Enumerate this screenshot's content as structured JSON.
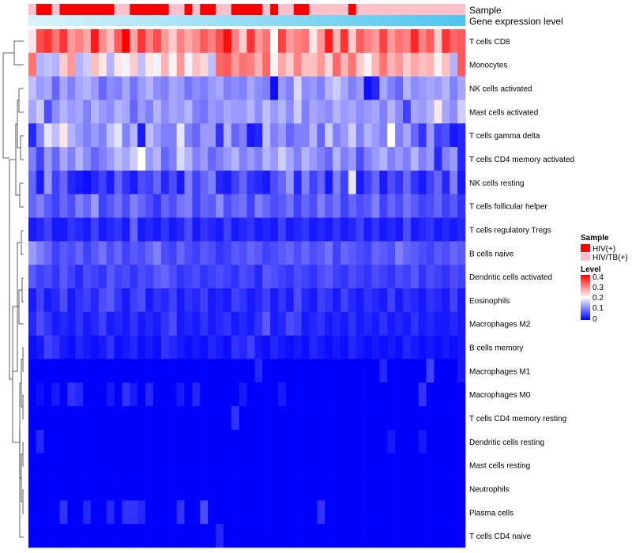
{
  "chart_data": {
    "type": "heatmap",
    "annotation_labels": {
      "sample": "Sample",
      "gene": "Gene expression level"
    },
    "legend": {
      "sample_title": "Sample",
      "sample_items": [
        {
          "label": "HIV(+)",
          "color": "#ff0000"
        },
        {
          "label": "HIV/TB(+)",
          "color": "#ffc0cb"
        }
      ],
      "level_title": "Level",
      "level_ticks": [
        "0.4",
        "0.3",
        "0.2",
        "0.1",
        "0"
      ],
      "position": "right"
    },
    "color_scale": {
      "min": 0,
      "max": 0.4,
      "low": "#0000ff",
      "mid": "#ffffff",
      "high": "#ff0000"
    },
    "gene_gradient": {
      "from": "#d9f2fb",
      "to": "#4fc6ee"
    },
    "sample_groups": [
      1,
      0,
      0,
      1,
      0,
      0,
      0,
      0,
      0,
      0,
      0,
      1,
      1,
      0,
      0,
      0,
      0,
      0,
      1,
      1,
      0,
      1,
      0,
      0,
      1,
      1,
      0,
      0,
      0,
      0,
      1,
      0,
      1,
      1,
      0,
      0,
      1,
      1,
      1,
      1,
      1,
      0,
      1,
      1,
      1,
      1,
      1,
      1,
      1,
      1,
      1,
      1,
      1,
      1,
      1,
      1
    ],
    "rows": [
      "T cells CD8",
      "Monocytes",
      "NK cells activated",
      "Mast cells activated",
      "T cells gamma delta",
      "T cells CD4 memory activated",
      "NK cells resting",
      "T cells follicular helper",
      "T cells regulatory  Tregs",
      "B cells naive",
      "Dendritic cells activated",
      "Eosinophils",
      "Macrophages M2",
      "B cells memory",
      "Macrophages M1",
      "Macrophages M0",
      "T cells CD4 memory resting",
      "Dendritic cells resting",
      "Mast cells resting",
      "Neutrophils",
      "Plasma cells",
      "T cells CD4 naive"
    ],
    "values": [
      [
        0.22,
        0.34,
        0.36,
        0.31,
        0.36,
        0.28,
        0.3,
        0.27,
        0.38,
        0.29,
        0.25,
        0.33,
        0.4,
        0.27,
        0.36,
        0.3,
        0.34,
        0.28,
        0.24,
        0.3,
        0.27,
        0.29,
        0.33,
        0.3,
        0.34,
        0.39,
        0.3,
        0.24,
        0.36,
        0.28,
        0.31,
        0.2,
        0.35,
        0.28,
        0.3,
        0.31,
        0.22,
        0.28,
        0.38,
        0.26,
        0.36,
        0.24,
        0.33,
        0.3,
        0.28,
        0.35,
        0.28,
        0.31,
        0.3,
        0.37,
        0.3,
        0.33,
        0.24,
        0.36,
        0.32,
        0.33
      ],
      [
        0.31,
        0.14,
        0.15,
        0.14,
        0.24,
        0.28,
        0.14,
        0.16,
        0.25,
        0.22,
        0.14,
        0.22,
        0.19,
        0.24,
        0.15,
        0.22,
        0.19,
        0.26,
        0.21,
        0.28,
        0.19,
        0.25,
        0.23,
        0.15,
        0.32,
        0.33,
        0.28,
        0.31,
        0.3,
        0.26,
        0.32,
        0.21,
        0.27,
        0.24,
        0.3,
        0.25,
        0.25,
        0.28,
        0.23,
        0.32,
        0.26,
        0.31,
        0.24,
        0.21,
        0.26,
        0.31,
        0.26,
        0.28,
        0.24,
        0.27,
        0.25,
        0.26,
        0.21,
        0.25,
        0.14,
        0.33
      ],
      [
        0.15,
        0.12,
        0.13,
        0.08,
        0.13,
        0.1,
        0.13,
        0.14,
        0.12,
        0.08,
        0.11,
        0.1,
        0.13,
        0.09,
        0.12,
        0.14,
        0.11,
        0.1,
        0.13,
        0.12,
        0.09,
        0.11,
        0.1,
        0.12,
        0.13,
        0.1,
        0.11,
        0.1,
        0.13,
        0.11,
        0.1,
        0.01,
        0.12,
        0.1,
        0.17,
        0.11,
        0.12,
        0.1,
        0.14,
        0.16,
        0.13,
        0.1,
        0.12,
        0.01,
        0.03,
        0.13,
        0.1,
        0.08,
        0.14,
        0.11,
        0.12,
        0.13,
        0.12,
        0.14,
        0.1,
        0.13
      ],
      [
        0.13,
        0.16,
        0.06,
        0.11,
        0.14,
        0.12,
        0.13,
        0.1,
        0.14,
        0.12,
        0.11,
        0.14,
        0.13,
        0.08,
        0.12,
        0.1,
        0.14,
        0.11,
        0.13,
        0.12,
        0.14,
        0.1,
        0.09,
        0.12,
        0.11,
        0.13,
        0.12,
        0.12,
        0.14,
        0.11,
        0.15,
        0.12,
        0.14,
        0.11,
        0.16,
        0.1,
        0.13,
        0.12,
        0.11,
        0.14,
        0.12,
        0.13,
        0.11,
        0.12,
        0.13,
        0.1,
        0.14,
        0.11,
        0.05,
        0.13,
        0.12,
        0.14,
        0.22,
        0.13,
        0.11,
        0.16
      ],
      [
        0.03,
        0.1,
        0.18,
        0.15,
        0.22,
        0.14,
        0.12,
        0.1,
        0.12,
        0.1,
        0.15,
        0.18,
        0.1,
        0.14,
        0.02,
        0.15,
        0.12,
        0.1,
        0.1,
        0.18,
        0.1,
        0.08,
        0.12,
        0.12,
        0.04,
        0.14,
        0.08,
        0.1,
        0.02,
        0.03,
        0.15,
        0.1,
        0.12,
        0.08,
        0.1,
        0.1,
        0.14,
        0.08,
        0.16,
        0.1,
        0.12,
        0.16,
        0.1,
        0.14,
        0.12,
        0.1,
        0.2,
        0.1,
        0.13,
        0.08,
        0.04,
        0.12,
        0.05,
        0.06,
        0.02,
        0.03
      ],
      [
        0.1,
        0.05,
        0.12,
        0.08,
        0.13,
        0.1,
        0.14,
        0.11,
        0.08,
        0.1,
        0.12,
        0.15,
        0.13,
        0.16,
        0.2,
        0.12,
        0.14,
        0.08,
        0.1,
        0.17,
        0.14,
        0.1,
        0.12,
        0.08,
        0.1,
        0.12,
        0.14,
        0.1,
        0.12,
        0.1,
        0.14,
        0.12,
        0.16,
        0.13,
        0.1,
        0.14,
        0.12,
        0.1,
        0.08,
        0.14,
        0.1,
        0.12,
        0.06,
        0.1,
        0.12,
        0.14,
        0.1,
        0.12,
        0.1,
        0.14,
        0.1,
        0.12,
        0.03,
        0.1,
        0.12,
        0.03
      ],
      [
        0.08,
        0.02,
        0.12,
        0.05,
        0.08,
        0.03,
        0.02,
        0.01,
        0.03,
        0.05,
        0.02,
        0.08,
        0.04,
        0.02,
        0.06,
        0.05,
        0.08,
        0.03,
        0.06,
        0.02,
        0.1,
        0.05,
        0.08,
        0.1,
        0.03,
        0.02,
        0.05,
        0.08,
        0.04,
        0.03,
        0.02,
        0.06,
        0.08,
        0.12,
        0.03,
        0.1,
        0.05,
        0.08,
        0.02,
        0.1,
        0.05,
        0.18,
        0.02,
        0.05,
        0.08,
        0.02,
        0.06,
        0.04,
        0.08,
        0.04,
        0.02,
        0.05,
        0.08,
        0.03,
        0.1,
        0.02
      ],
      [
        0.08,
        0.1,
        0.07,
        0.05,
        0.08,
        0.06,
        0.1,
        0.08,
        0.12,
        0.05,
        0.07,
        0.09,
        0.06,
        0.1,
        0.08,
        0.06,
        0.04,
        0.08,
        0.06,
        0.09,
        0.1,
        0.05,
        0.08,
        0.07,
        0.11,
        0.06,
        0.08,
        0.09,
        0.05,
        0.1,
        0.08,
        0.06,
        0.07,
        0.09,
        0.05,
        0.08,
        0.06,
        0.1,
        0.07,
        0.09,
        0.05,
        0.08,
        0.06,
        0.07,
        0.1,
        0.05,
        0.08,
        0.06,
        0.09,
        0.07,
        0.05,
        0.06,
        0.08,
        0.05,
        0.07,
        0.04
      ],
      [
        0.02,
        0.03,
        0.05,
        0.02,
        0.02,
        0.04,
        0.03,
        0.02,
        0.05,
        0.02,
        0.03,
        0.04,
        0.02,
        0.08,
        0.02,
        0.03,
        0.02,
        0.04,
        0.02,
        0.03,
        0.06,
        0.02,
        0.04,
        0.03,
        0.02,
        0.05,
        0.02,
        0.03,
        0.04,
        0.02,
        0.03,
        0.02,
        0.05,
        0.02,
        0.03,
        0.04,
        0.02,
        0.03,
        0.02,
        0.04,
        0.02,
        0.03,
        0.05,
        0.02,
        0.04,
        0.02,
        0.03,
        0.02,
        0.06,
        0.02,
        0.03,
        0.04,
        0.02,
        0.03,
        0.02,
        0.03
      ],
      [
        0.12,
        0.1,
        0.08,
        0.05,
        0.07,
        0.06,
        0.08,
        0.05,
        0.07,
        0.09,
        0.06,
        0.08,
        0.05,
        0.07,
        0.06,
        0.08,
        0.1,
        0.06,
        0.05,
        0.08,
        0.06,
        0.05,
        0.07,
        0.06,
        0.04,
        0.05,
        0.07,
        0.06,
        0.08,
        0.07,
        0.05,
        0.06,
        0.07,
        0.08,
        0.06,
        0.08,
        0.06,
        0.07,
        0.09,
        0.05,
        0.08,
        0.07,
        0.06,
        0.05,
        0.08,
        0.07,
        0.06,
        0.1,
        0.08,
        0.07,
        0.06,
        0.05,
        0.07,
        0.06,
        0.08,
        0.07
      ],
      [
        0.07,
        0.05,
        0.06,
        0.04,
        0.07,
        0.05,
        0.03,
        0.06,
        0.05,
        0.04,
        0.07,
        0.05,
        0.06,
        0.04,
        0.06,
        0.05,
        0.07,
        0.08,
        0.06,
        0.04,
        0.05,
        0.06,
        0.04,
        0.05,
        0.06,
        0.05,
        0.04,
        0.06,
        0.05,
        0.03,
        0.07,
        0.06,
        0.05,
        0.04,
        0.06,
        0.05,
        0.04,
        0.06,
        0.07,
        0.05,
        0.04,
        0.06,
        0.05,
        0.04,
        0.06,
        0.05,
        0.04,
        0.06,
        0.05,
        0.07,
        0.04,
        0.06,
        0.05,
        0.04,
        0.06,
        0.05
      ],
      [
        0.02,
        0.05,
        0.02,
        0.03,
        0.06,
        0.02,
        0.04,
        0.05,
        0.03,
        0.06,
        0.07,
        0.04,
        0.02,
        0.05,
        0.06,
        0.02,
        0.04,
        0.03,
        0.05,
        0.02,
        0.04,
        0.03,
        0.05,
        0.02,
        0.03,
        0.02,
        0.05,
        0.04,
        0.02,
        0.03,
        0.05,
        0.02,
        0.04,
        0.02,
        0.06,
        0.03,
        0.02,
        0.05,
        0.04,
        0.02,
        0.05,
        0.03,
        0.02,
        0.04,
        0.03,
        0.02,
        0.05,
        0.02,
        0.04,
        0.03,
        0.02,
        0.04,
        0.03,
        0.02,
        0.05,
        0.02
      ],
      [
        0.03,
        0.06,
        0.04,
        0.02,
        0.03,
        0.02,
        0.04,
        0.02,
        0.03,
        0.05,
        0.02,
        0.03,
        0.02,
        0.04,
        0.02,
        0.03,
        0.02,
        0.04,
        0.06,
        0.02,
        0.03,
        0.02,
        0.04,
        0.02,
        0.03,
        0.04,
        0.02,
        0.03,
        0.02,
        0.04,
        0.07,
        0.02,
        0.03,
        0.06,
        0.05,
        0.02,
        0.03,
        0.04,
        0.02,
        0.03,
        0.02,
        0.04,
        0.02,
        0.03,
        0.02,
        0.04,
        0.02,
        0.03,
        0.02,
        0.04,
        0.02,
        0.03,
        0.02,
        0.02,
        0.03,
        0.02
      ],
      [
        0.01,
        0.02,
        0.05,
        0.04,
        0.02,
        0.01,
        0.03,
        0.02,
        0.01,
        0.02,
        0.04,
        0.01,
        0.02,
        0.03,
        0.01,
        0.02,
        0.01,
        0.04,
        0.03,
        0.02,
        0.01,
        0.02,
        0.01,
        0.03,
        0.02,
        0.01,
        0.04,
        0.03,
        0.05,
        0.02,
        0.01,
        0.03,
        0.02,
        0.01,
        0.02,
        0.01,
        0.03,
        0.02,
        0.01,
        0.02,
        0.01,
        0.03,
        0.02,
        0.01,
        0.02,
        0.01,
        0.02,
        0.01,
        0.03,
        0.02,
        0.01,
        0.02,
        0.01,
        0.02,
        0.01,
        0.02
      ],
      [
        0.0,
        0.0,
        0.0,
        0.0,
        0.0,
        0.0,
        0.0,
        0.0,
        0.0,
        0.0,
        0.0,
        0.0,
        0.0,
        0.0,
        0.0,
        0.0,
        0.0,
        0.0,
        0.0,
        0.0,
        0.0,
        0.0,
        0.0,
        0.0,
        0.0,
        0.0,
        0.0,
        0.0,
        0.0,
        0.03,
        0.0,
        0.0,
        0.0,
        0.0,
        0.0,
        0.0,
        0.0,
        0.0,
        0.0,
        0.0,
        0.0,
        0.0,
        0.0,
        0.0,
        0.0,
        0.03,
        0.0,
        0.0,
        0.0,
        0.0,
        0.0,
        0.05,
        0.0,
        0.0,
        0.0,
        0.02
      ],
      [
        0.0,
        0.01,
        0.0,
        0.02,
        0.0,
        0.04,
        0.03,
        0.0,
        0.0,
        0.0,
        0.02,
        0.0,
        0.04,
        0.02,
        0.0,
        0.03,
        0.0,
        0.0,
        0.0,
        0.02,
        0.0,
        0.03,
        0.0,
        0.0,
        0.0,
        0.0,
        0.0,
        0.02,
        0.0,
        0.0,
        0.0,
        0.0,
        0.02,
        0.0,
        0.0,
        0.0,
        0.0,
        0.0,
        0.0,
        0.0,
        0.0,
        0.0,
        0.0,
        0.0,
        0.0,
        0.0,
        0.0,
        0.0,
        0.0,
        0.0,
        0.04,
        0.0,
        0.0,
        0.0,
        0.0,
        0.0
      ],
      [
        0.0,
        0.0,
        0.0,
        0.0,
        0.0,
        0.0,
        0.0,
        0.0,
        0.0,
        0.0,
        0.0,
        0.0,
        0.0,
        0.0,
        0.0,
        0.0,
        0.0,
        0.0,
        0.0,
        0.0,
        0.0,
        0.0,
        0.0,
        0.0,
        0.0,
        0.0,
        0.04,
        0.0,
        0.0,
        0.0,
        0.0,
        0.0,
        0.0,
        0.0,
        0.0,
        0.0,
        0.0,
        0.0,
        0.0,
        0.0,
        0.0,
        0.0,
        0.0,
        0.0,
        0.0,
        0.0,
        0.0,
        0.0,
        0.0,
        0.0,
        0.0,
        0.0,
        0.0,
        0.0,
        0.0,
        0.0
      ],
      [
        0.0,
        0.03,
        0.0,
        0.0,
        0.0,
        0.0,
        0.0,
        0.0,
        0.0,
        0.0,
        0.0,
        0.0,
        0.0,
        0.0,
        0.0,
        0.0,
        0.0,
        0.0,
        0.0,
        0.0,
        0.0,
        0.0,
        0.0,
        0.0,
        0.0,
        0.0,
        0.0,
        0.0,
        0.0,
        0.0,
        0.0,
        0.0,
        0.0,
        0.0,
        0.0,
        0.0,
        0.0,
        0.0,
        0.0,
        0.0,
        0.0,
        0.0,
        0.0,
        0.0,
        0.0,
        0.0,
        0.02,
        0.0,
        0.0,
        0.0,
        0.02,
        0.0,
        0.0,
        0.0,
        0.0,
        0.0
      ],
      [
        0.0,
        0.0,
        0.0,
        0.0,
        0.0,
        0.0,
        0.0,
        0.0,
        0.0,
        0.0,
        0.0,
        0.0,
        0.0,
        0.0,
        0.0,
        0.0,
        0.0,
        0.0,
        0.0,
        0.0,
        0.0,
        0.0,
        0.0,
        0.0,
        0.0,
        0.0,
        0.0,
        0.0,
        0.0,
        0.0,
        0.0,
        0.0,
        0.0,
        0.0,
        0.0,
        0.0,
        0.0,
        0.0,
        0.0,
        0.0,
        0.0,
        0.0,
        0.0,
        0.0,
        0.0,
        0.0,
        0.0,
        0.0,
        0.0,
        0.0,
        0.0,
        0.0,
        0.0,
        0.0,
        0.0,
        0.0
      ],
      [
        0.0,
        0.0,
        0.0,
        0.0,
        0.0,
        0.0,
        0.0,
        0.0,
        0.0,
        0.0,
        0.0,
        0.0,
        0.0,
        0.0,
        0.0,
        0.0,
        0.0,
        0.0,
        0.0,
        0.0,
        0.0,
        0.0,
        0.0,
        0.0,
        0.0,
        0.0,
        0.0,
        0.0,
        0.0,
        0.0,
        0.0,
        0.0,
        0.0,
        0.0,
        0.0,
        0.0,
        0.0,
        0.0,
        0.0,
        0.0,
        0.0,
        0.0,
        0.0,
        0.0,
        0.0,
        0.0,
        0.0,
        0.0,
        0.0,
        0.0,
        0.0,
        0.0,
        0.0,
        0.0,
        0.0,
        0.0
      ],
      [
        0.0,
        0.0,
        0.0,
        0.0,
        0.04,
        0.0,
        0.0,
        0.03,
        0.0,
        0.0,
        0.03,
        0.0,
        0.04,
        0.04,
        0.03,
        0.0,
        0.0,
        0.0,
        0.0,
        0.04,
        0.0,
        0.0,
        0.06,
        0.0,
        0.0,
        0.0,
        0.0,
        0.0,
        0.0,
        0.0,
        0.0,
        0.0,
        0.0,
        0.0,
        0.0,
        0.0,
        0.0,
        0.04,
        0.0,
        0.0,
        0.0,
        0.0,
        0.0,
        0.0,
        0.0,
        0.0,
        0.0,
        0.0,
        0.0,
        0.0,
        0.0,
        0.0,
        0.0,
        0.0,
        0.0,
        0.0
      ],
      [
        0.0,
        0.0,
        0.0,
        0.0,
        0.0,
        0.0,
        0.0,
        0.0,
        0.0,
        0.0,
        0.0,
        0.0,
        0.0,
        0.0,
        0.0,
        0.0,
        0.0,
        0.0,
        0.0,
        0.0,
        0.0,
        0.0,
        0.0,
        0.0,
        0.03,
        0.0,
        0.0,
        0.0,
        0.0,
        0.0,
        0.0,
        0.0,
        0.0,
        0.0,
        0.0,
        0.0,
        0.0,
        0.0,
        0.0,
        0.0,
        0.0,
        0.0,
        0.0,
        0.0,
        0.0,
        0.0,
        0.0,
        0.0,
        0.0,
        0.0,
        0.0,
        0.0,
        0.0,
        0.0,
        0.0,
        0.0
      ]
    ]
  }
}
